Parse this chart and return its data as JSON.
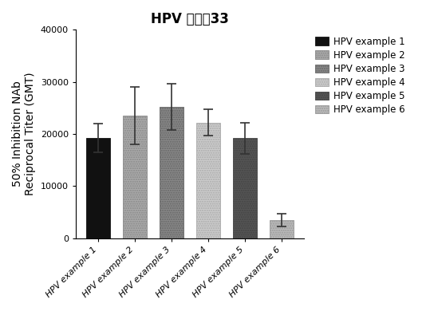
{
  "title": "HPV 五聚佔33",
  "ylabel_line1": "50% Inhibition NAb",
  "ylabel_line2": "Reciprocal Titer (GMT)",
  "categories": [
    "HPV example 1",
    "HPV example 2",
    "HPV example 3",
    "HPV example 4",
    "HPV example 5",
    "HPV example 6"
  ],
  "values": [
    19200,
    23500,
    25200,
    22200,
    19200,
    3500
  ],
  "errors_upper": [
    2800,
    5500,
    4500,
    2500,
    3000,
    1200
  ],
  "errors_lower": [
    2800,
    5500,
    4500,
    2500,
    3000,
    1200
  ],
  "bar_colors": [
    "#111111",
    "#aaaaaa",
    "#888888",
    "#cccccc",
    "#555555",
    "#bbbbbb"
  ],
  "bar_edgecolors": [
    "#111111",
    "#888888",
    "#666666",
    "#aaaaaa",
    "#444444",
    "#999999"
  ],
  "ylim": [
    0,
    40000
  ],
  "yticks": [
    0,
    10000,
    20000,
    30000,
    40000
  ],
  "legend_labels": [
    "HPV example 1",
    "HPV example 2",
    "HPV example 3",
    "HPV example 4",
    "HPV example 5",
    "HPV example 6"
  ],
  "legend_colors": [
    "#111111",
    "#aaaaaa",
    "#888888",
    "#cccccc",
    "#555555",
    "#bbbbbb"
  ],
  "legend_edge_colors": [
    "#111111",
    "#888888",
    "#666666",
    "#aaaaaa",
    "#444444",
    "#999999"
  ],
  "background_color": "#ffffff",
  "title_fontsize": 12,
  "ylabel_fontsize": 10,
  "tick_fontsize": 8,
  "legend_fontsize": 8.5
}
